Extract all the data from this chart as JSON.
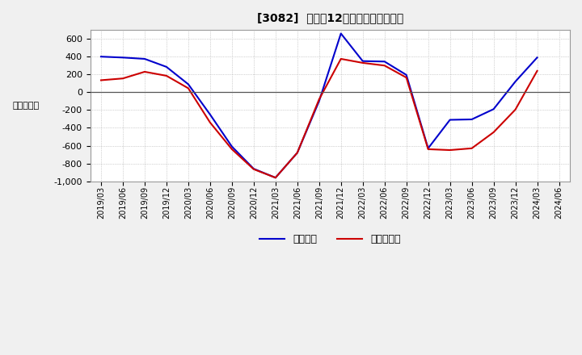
{
  "title": "[3082]  利益の12か月移動合計の推移",
  "ylabel": "（百万円）",
  "background_color": "#f0f0f0",
  "plot_bg_color": "#ffffff",
  "grid_color": "#aaaaaa",
  "ylim": [
    -1000,
    700
  ],
  "yticks": [
    -1000,
    -800,
    -600,
    -400,
    -200,
    0,
    200,
    400,
    600
  ],
  "legend_labels": [
    "経常利益",
    "当期純利益"
  ],
  "line_colors": [
    "#0000cc",
    "#cc0000"
  ],
  "dates": [
    "2019/03",
    "2019/06",
    "2019/09",
    "2019/12",
    "2020/03",
    "2020/06",
    "2020/09",
    "2020/12",
    "2021/03",
    "2021/06",
    "2021/09",
    "2021/12",
    "2022/03",
    "2022/06",
    "2022/09",
    "2022/12",
    "2023/03",
    "2023/06",
    "2023/09",
    "2023/12",
    "2024/03",
    "2024/06"
  ],
  "keijo_rieki": [
    400,
    390,
    375,
    285,
    90,
    -250,
    -610,
    -860,
    -960,
    -680,
    -100,
    660,
    350,
    345,
    195,
    -630,
    -310,
    -305,
    -190,
    120,
    390,
    null
  ],
  "touki_junrieki": [
    135,
    155,
    230,
    185,
    45,
    -340,
    -640,
    -865,
    -960,
    -680,
    -80,
    375,
    330,
    300,
    165,
    -640,
    -650,
    -630,
    -450,
    -195,
    240,
    null
  ]
}
